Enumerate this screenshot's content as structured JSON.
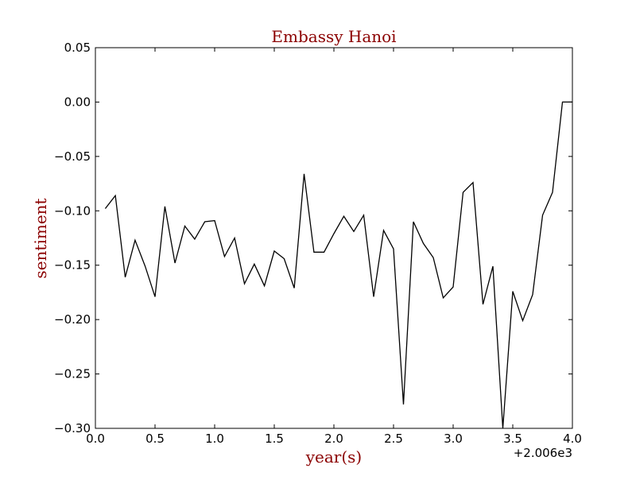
{
  "chart_data": {
    "type": "line",
    "title": "Embassy Hanoi",
    "xlabel": "year(s)",
    "ylabel": "sentiment",
    "x_offset_label": "+2.006e3",
    "xlim": [
      0.0,
      4.0
    ],
    "ylim": [
      -0.3,
      0.05
    ],
    "x_ticks": [
      0.0,
      0.5,
      1.0,
      1.5,
      2.0,
      2.5,
      3.0,
      3.5,
      4.0
    ],
    "x_tick_labels": [
      "0.0",
      "0.5",
      "1.0",
      "1.5",
      "2.0",
      "2.5",
      "3.0",
      "3.5",
      "4.0"
    ],
    "y_ticks": [
      0.05,
      0.0,
      -0.05,
      -0.1,
      -0.15,
      -0.2,
      -0.25,
      -0.3
    ],
    "y_tick_labels": [
      "0.05",
      "0.00",
      "−0.05",
      "−0.10",
      "−0.15",
      "−0.20",
      "−0.25",
      "−0.30"
    ],
    "grid": false,
    "label_color": "#8b0000",
    "line_color": "#000000",
    "series": [
      {
        "x": [
          0.083,
          0.167,
          0.25,
          0.333,
          0.417,
          0.5,
          0.583,
          0.667,
          0.75,
          0.833,
          0.917,
          1.0,
          1.083,
          1.167,
          1.25,
          1.333,
          1.417,
          1.5,
          1.583,
          1.667,
          1.75,
          1.833,
          1.917,
          2.0,
          2.083,
          2.167,
          2.25,
          2.333,
          2.417,
          2.5,
          2.583,
          2.667,
          2.75,
          2.833,
          2.917,
          3.0,
          3.083,
          3.167,
          3.25,
          3.333,
          3.417,
          3.5,
          3.583,
          3.667,
          3.75,
          3.833,
          3.917,
          4.0
        ],
        "y": [
          -0.098,
          -0.086,
          -0.161,
          -0.127,
          -0.151,
          -0.179,
          -0.096,
          -0.148,
          -0.114,
          -0.126,
          -0.11,
          -0.109,
          -0.142,
          -0.125,
          -0.167,
          -0.149,
          -0.169,
          -0.137,
          -0.144,
          -0.171,
          -0.066,
          -0.138,
          -0.138,
          -0.121,
          -0.105,
          -0.119,
          -0.104,
          -0.179,
          -0.118,
          -0.135,
          -0.278,
          -0.11,
          -0.13,
          -0.143,
          -0.18,
          -0.17,
          -0.083,
          -0.074,
          -0.186,
          -0.151,
          -0.3,
          -0.174,
          -0.201,
          -0.177,
          -0.104,
          -0.083,
          0.0,
          0.0
        ]
      }
    ]
  }
}
